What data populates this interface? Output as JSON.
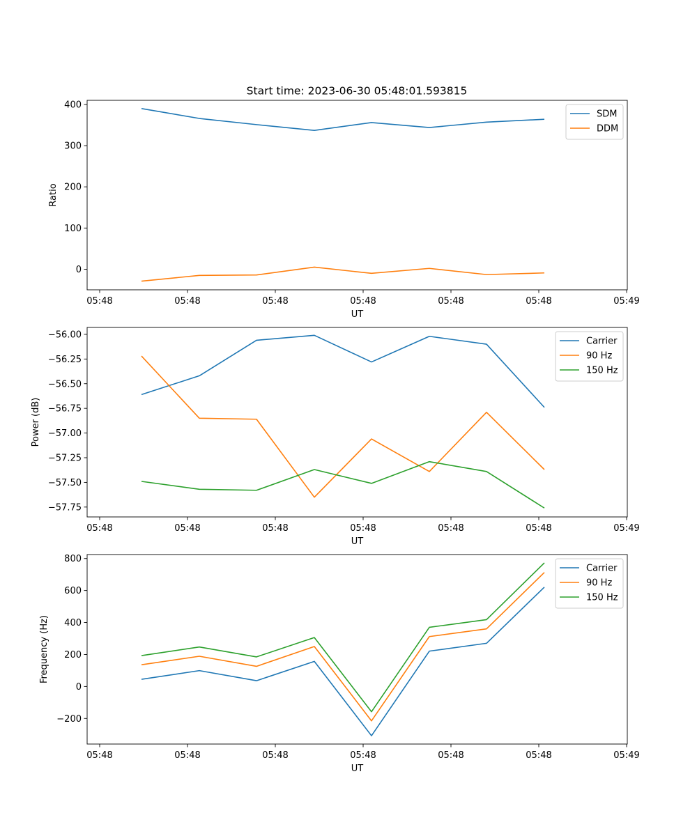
{
  "title": "Start time: 2023-06-30 05:48:01.593815",
  "chart_data": [
    {
      "type": "line",
      "xlabel": "UT",
      "ylabel": "Ratio",
      "x_tick_labels": [
        "05:48",
        "05:48",
        "05:48",
        "05:48",
        "05:48",
        "05:48",
        "05:49"
      ],
      "yticks": [
        0,
        100,
        200,
        300,
        400
      ],
      "ytick_labels": [
        "0",
        "100",
        "200",
        "300",
        "400"
      ],
      "ylim": [
        -50,
        410
      ],
      "legend_position": "top-right",
      "series": [
        {
          "name": "SDM",
          "color": "#1f77b4",
          "values": [
            390,
            366,
            351,
            337,
            356,
            344,
            357,
            364
          ]
        },
        {
          "name": "DDM",
          "color": "#ff7f0e",
          "values": [
            -29,
            -15,
            -14,
            5,
            -10,
            2,
            -13,
            -9
          ]
        }
      ]
    },
    {
      "type": "line",
      "xlabel": "UT",
      "ylabel": "Power (dB)",
      "x_tick_labels": [
        "05:48",
        "05:48",
        "05:48",
        "05:48",
        "05:48",
        "05:48",
        "05:49"
      ],
      "yticks": [
        -57.75,
        -57.5,
        -57.25,
        -57.0,
        -56.75,
        -56.5,
        -56.25,
        -56.0
      ],
      "ytick_labels": [
        "−57.75",
        "−57.50",
        "−57.25",
        "−57.00",
        "−56.75",
        "−56.50",
        "−56.25",
        "−56.00"
      ],
      "ylim": [
        -57.85,
        -55.93
      ],
      "legend_position": "top-right",
      "series": [
        {
          "name": "Carrier",
          "color": "#1f77b4",
          "values": [
            -56.61,
            -56.42,
            -56.06,
            -56.01,
            -56.28,
            -56.02,
            -56.1,
            -56.74
          ]
        },
        {
          "name": "90 Hz",
          "color": "#ff7f0e",
          "values": [
            -56.22,
            -56.85,
            -56.86,
            -57.65,
            -57.06,
            -57.39,
            -56.79,
            -57.37
          ]
        },
        {
          "name": "150 Hz",
          "color": "#2ca02c",
          "values": [
            -57.49,
            -57.57,
            -57.58,
            -57.37,
            -57.51,
            -57.29,
            -57.39,
            -57.76
          ]
        }
      ]
    },
    {
      "type": "line",
      "xlabel": "UT",
      "ylabel": "Frequency (Hz)",
      "x_tick_labels": [
        "05:48",
        "05:48",
        "05:48",
        "05:48",
        "05:48",
        "05:48",
        "05:49"
      ],
      "yticks": [
        -200,
        0,
        200,
        400,
        600,
        800
      ],
      "ytick_labels": [
        "−200",
        "0",
        "200",
        "400",
        "600",
        "800"
      ],
      "ylim": [
        -360,
        825
      ],
      "legend_position": "top-right",
      "series": [
        {
          "name": "Carrier",
          "color": "#1f77b4",
          "values": [
            45,
            99,
            36,
            157,
            -308,
            221,
            270,
            621
          ]
        },
        {
          "name": "90 Hz",
          "color": "#ff7f0e",
          "values": [
            136,
            189,
            126,
            250,
            -215,
            312,
            360,
            713
          ]
        },
        {
          "name": "150 Hz",
          "color": "#2ca02c",
          "values": [
            193,
            247,
            185,
            306,
            -158,
            370,
            418,
            773
          ]
        }
      ]
    }
  ]
}
